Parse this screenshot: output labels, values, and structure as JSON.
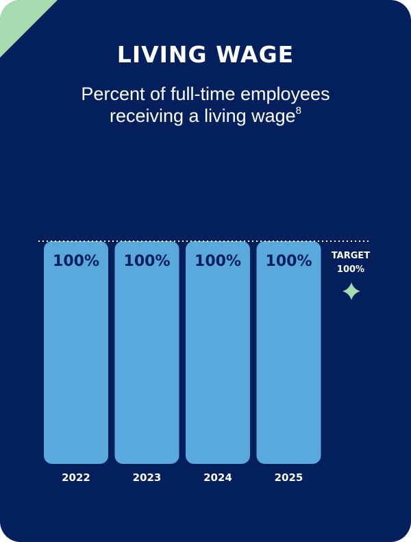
{
  "title": "LIVING WAGE",
  "subtitle": {
    "line1": "Percent of full-time employees",
    "line2": "receiving a living wage",
    "footnote": "8"
  },
  "colors": {
    "background": "#04205c",
    "bar": "#5aa9dc",
    "accent": "#a6dcb0",
    "text": "#ffffff"
  },
  "chart_data": {
    "type": "bar",
    "categories": [
      "2022",
      "2023",
      "2024",
      "2025"
    ],
    "values": [
      100,
      100,
      100,
      100
    ],
    "data_labels": [
      "100%",
      "100%",
      "100%",
      "100%"
    ],
    "ylim": [
      0,
      100
    ],
    "grid": false,
    "target": {
      "value": 100,
      "label_line1": "TARGET",
      "label_line2": "100%",
      "icon": "sparkle-icon"
    }
  }
}
